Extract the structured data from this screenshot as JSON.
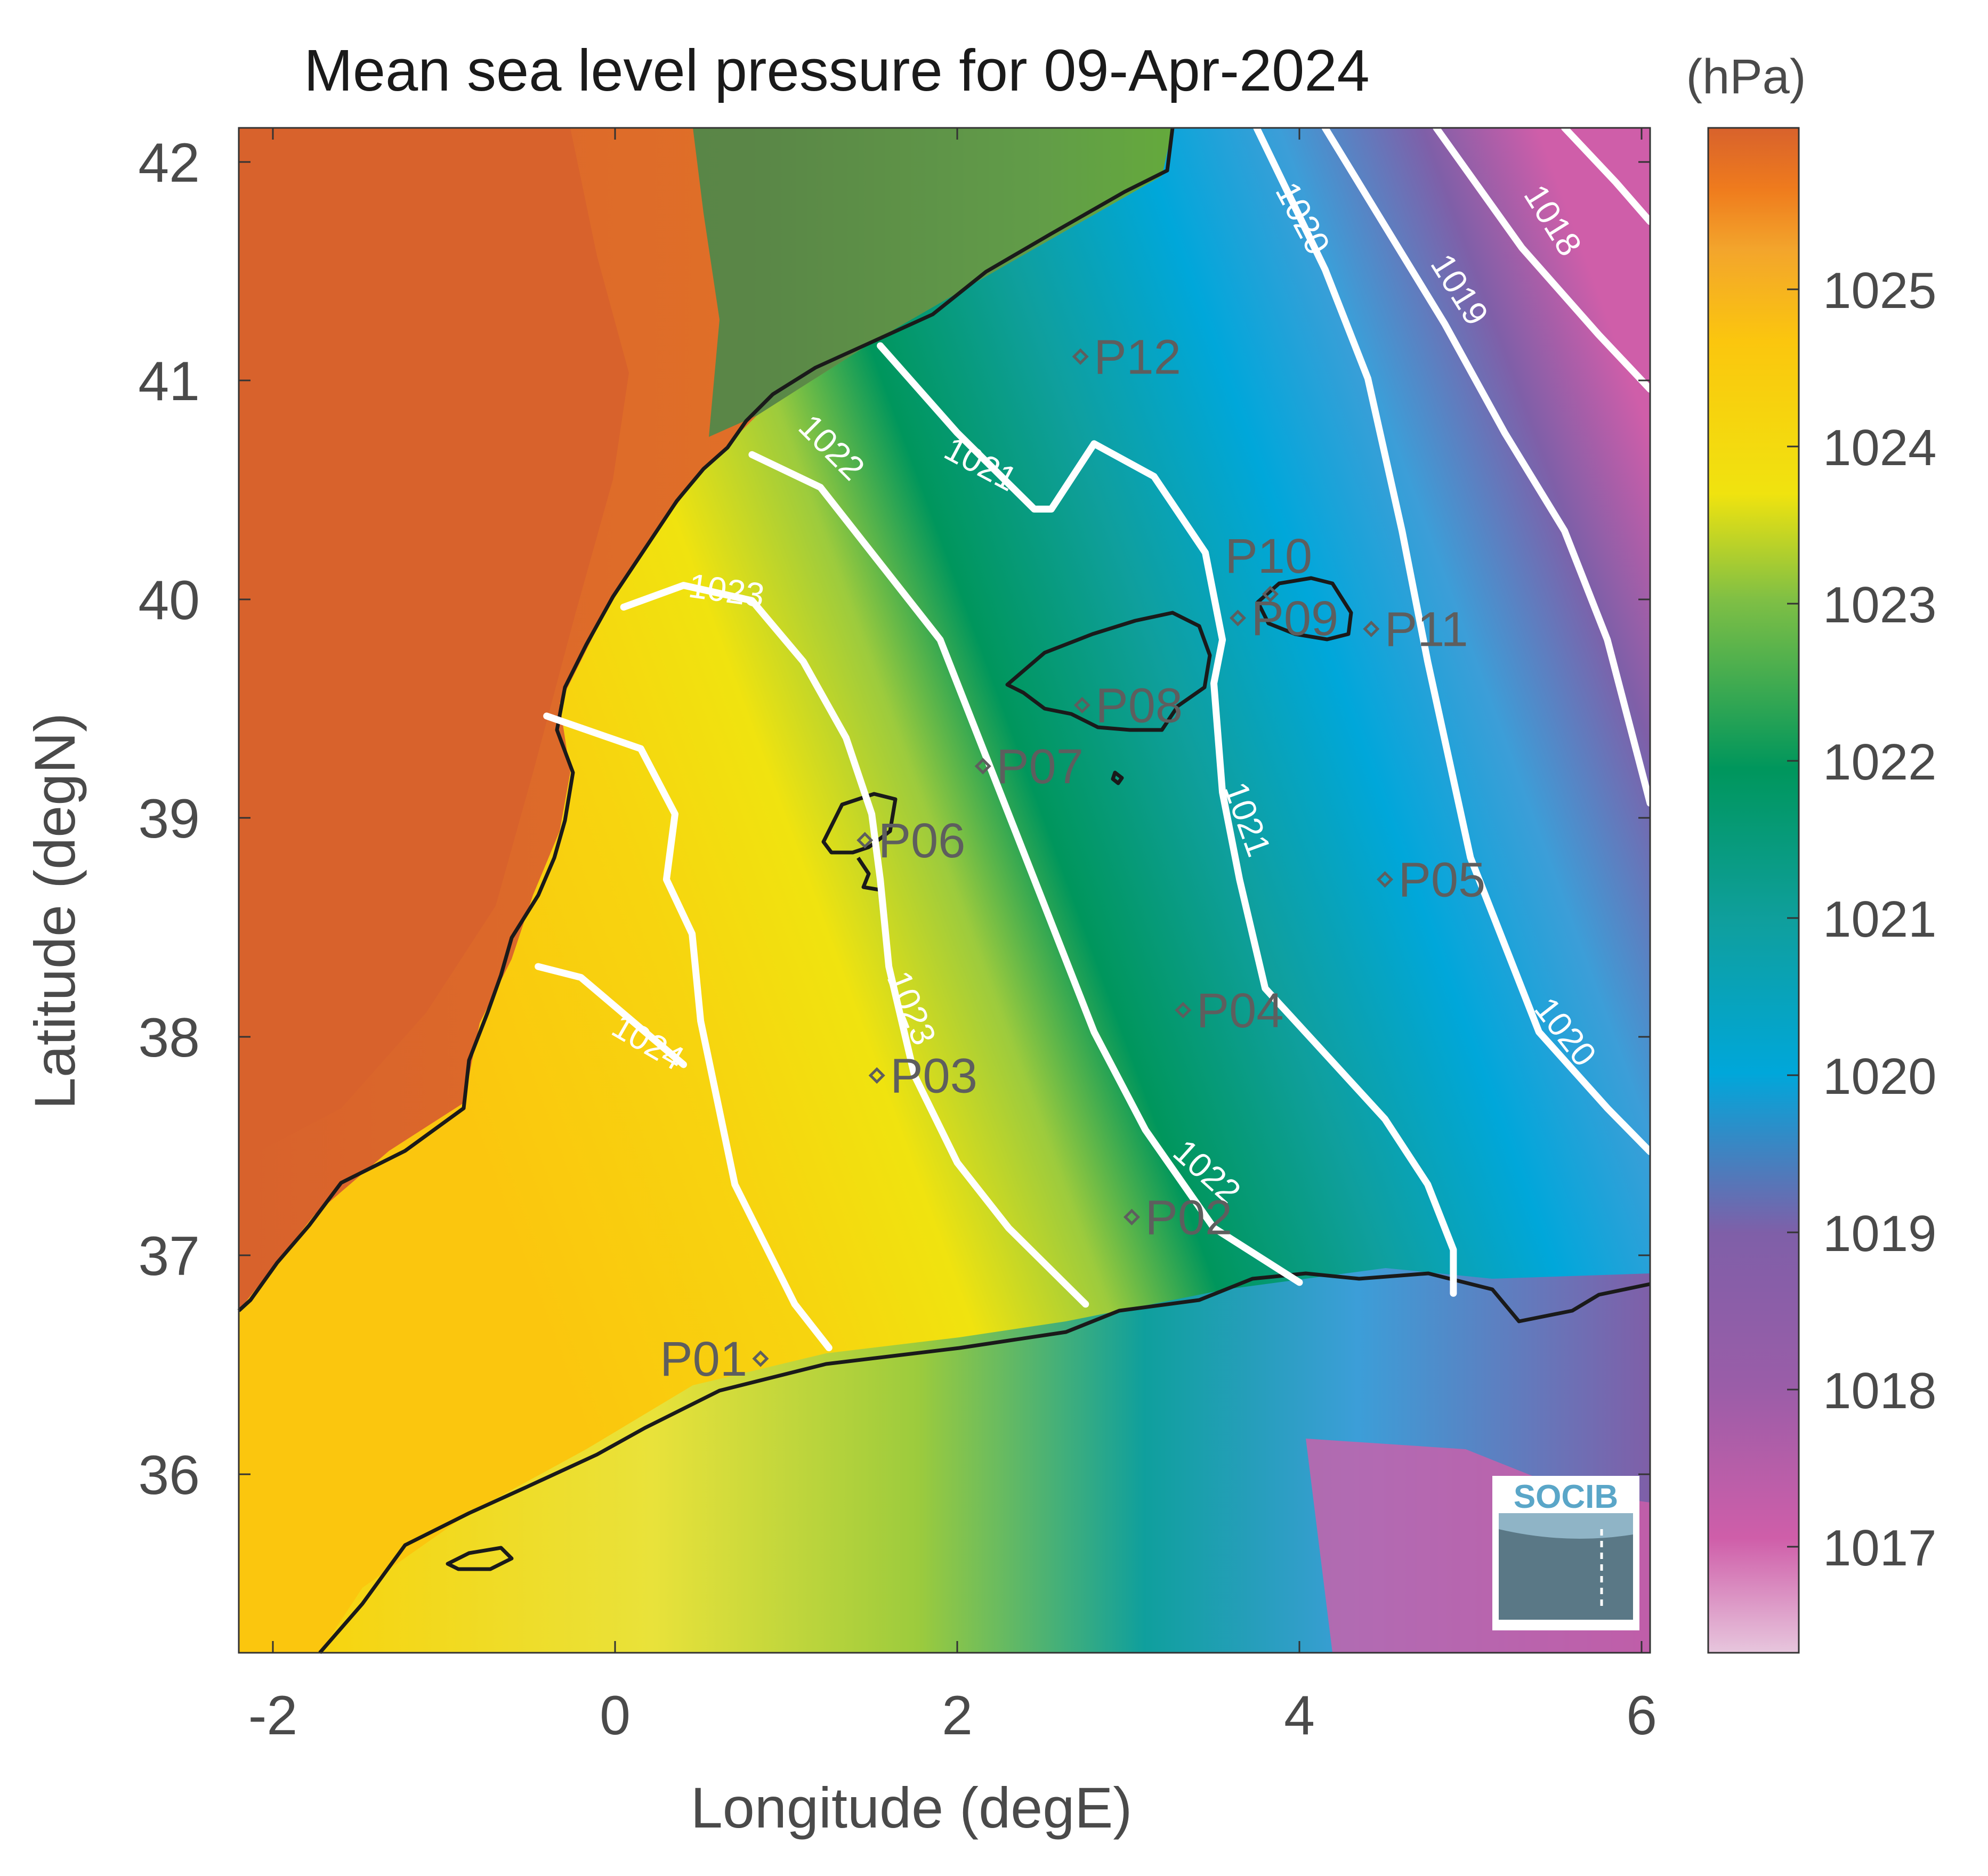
{
  "title": "Mean sea level pressure for 09-Apr-2024",
  "colorbar": {
    "unit_label": "(hPa)",
    "ticks": [
      "1017",
      "1018",
      "1019",
      "1020",
      "1021",
      "1022",
      "1023",
      "1024",
      "1025"
    ],
    "range": [
      1016.3,
      1026.0
    ]
  },
  "axes": {
    "xlabel": "Longitude (degE)",
    "ylabel": "Latitude (degN)",
    "xlim": [
      -2.2,
      6.05
    ],
    "ylim": [
      35.15,
      42.15
    ],
    "xticks": [
      "-2",
      "0",
      "2",
      "4",
      "6"
    ],
    "yticks": [
      "36",
      "37",
      "38",
      "39",
      "40",
      "41",
      "42"
    ]
  },
  "logo": {
    "text": "SOCIB"
  },
  "colors": {
    "colormap": [
      "#e7c6dd",
      "#cf5ea9",
      "#7f5fa8",
      "#3c9ed8",
      "#00a7da",
      "#0f9f9d",
      "#00965c",
      "#7ebf45",
      "#f0e30f",
      "#fbc60e",
      "#f3a52c",
      "#ef7b1d",
      "#d8622c"
    ],
    "land_high": "#d8622c",
    "coastline": "#1a1a1a",
    "contour": "#ffffff",
    "stations": "#5e5e5e"
  },
  "chart_data": {
    "type": "heatmap",
    "variable": "Mean sea level pressure",
    "units": "hPa",
    "contour_levels": [
      {
        "level": 1018,
        "label": "1018"
      },
      {
        "level": 1019,
        "label": "1019"
      },
      {
        "level": 1020,
        "label": "1020"
      },
      {
        "level": 1021,
        "label": "1021"
      },
      {
        "level": 1022,
        "label": "1022"
      },
      {
        "level": 1023,
        "label": "1023"
      },
      {
        "level": 1024,
        "label": "1024"
      }
    ],
    "contours": [
      {
        "level": 1018,
        "lon": [
          4.8,
          5.3,
          5.75,
          6.05
        ],
        "lat": [
          42.15,
          41.6,
          41.2,
          40.95
        ]
      },
      {
        "level": 1018,
        "lon": [
          5.55,
          5.85,
          6.05
        ],
        "lat": [
          42.15,
          41.9,
          41.72
        ]
      },
      {
        "level": 1019,
        "lon": [
          4.15,
          4.5,
          4.85,
          5.2,
          5.55,
          5.8,
          6.05
        ],
        "lat": [
          42.15,
          41.7,
          41.25,
          40.75,
          40.3,
          39.8,
          39.05
        ]
      },
      {
        "level": 1020,
        "lon": [
          3.75,
          4.15,
          4.4,
          4.6,
          4.75,
          5.0,
          5.4,
          5.8,
          6.05
        ],
        "lat": [
          42.15,
          41.5,
          41.0,
          40.3,
          39.7,
          38.8,
          38.0,
          37.65,
          37.45
        ]
      },
      {
        "level": 1021,
        "lon": [
          1.55,
          2.0,
          2.45,
          2.55,
          2.8,
          3.15,
          3.45,
          3.55,
          3.5,
          3.55,
          3.65,
          3.8,
          4.15,
          4.5,
          4.75,
          4.9,
          4.9
        ],
        "lat": [
          41.15,
          40.75,
          40.4,
          40.4,
          40.7,
          40.55,
          40.2,
          39.8,
          39.6,
          39.1,
          38.7,
          38.2,
          37.9,
          37.6,
          37.3,
          37.0,
          36.8
        ]
      },
      {
        "level": 1022,
        "lon": [
          0.8,
          1.2,
          1.5,
          1.9,
          2.2,
          2.5,
          2.8,
          3.1,
          3.5,
          4.0
        ],
        "lat": [
          40.65,
          40.5,
          40.2,
          39.8,
          39.2,
          38.6,
          38.0,
          37.55,
          37.1,
          36.85
        ]
      },
      {
        "level": 1023,
        "lon": [
          0.05,
          0.4,
          0.8,
          1.1,
          1.35,
          1.5,
          1.55,
          1.6,
          1.75,
          2.0,
          2.3,
          2.75
        ],
        "lat": [
          39.95,
          40.05,
          39.98,
          39.7,
          39.35,
          39.0,
          38.7,
          38.3,
          37.8,
          37.4,
          37.1,
          36.75
        ]
      },
      {
        "level": 1024,
        "lon": [
          -0.4,
          0.15,
          0.35,
          0.3,
          0.45,
          0.5,
          0.7,
          1.05,
          1.25
        ],
        "lat": [
          39.45,
          39.3,
          39.0,
          38.7,
          38.45,
          38.05,
          37.3,
          36.75,
          36.55
        ]
      },
      {
        "level": 1024,
        "lon": [
          -0.45,
          -0.2,
          0.1,
          0.4
        ],
        "lat": [
          38.3,
          38.25,
          38.05,
          37.85
        ]
      }
    ],
    "points": [
      {
        "name": "P01",
        "lon": 0.85,
        "lat": 36.5
      },
      {
        "name": "P02",
        "lon": 3.02,
        "lat": 37.15
      },
      {
        "name": "P03",
        "lon": 1.53,
        "lat": 37.8
      },
      {
        "name": "P04",
        "lon": 3.32,
        "lat": 38.1
      },
      {
        "name": "P05",
        "lon": 4.5,
        "lat": 38.7
      },
      {
        "name": "P06",
        "lon": 1.46,
        "lat": 38.88
      },
      {
        "name": "P07",
        "lon": 2.15,
        "lat": 39.22
      },
      {
        "name": "P08",
        "lon": 2.73,
        "lat": 39.5
      },
      {
        "name": "P09",
        "lon": 3.64,
        "lat": 39.9
      },
      {
        "name": "P10",
        "lon": 3.83,
        "lat": 40.01
      },
      {
        "name": "P11",
        "lon": 4.42,
        "lat": 39.85
      },
      {
        "name": "P12",
        "lon": 2.72,
        "lat": 41.1
      }
    ]
  }
}
